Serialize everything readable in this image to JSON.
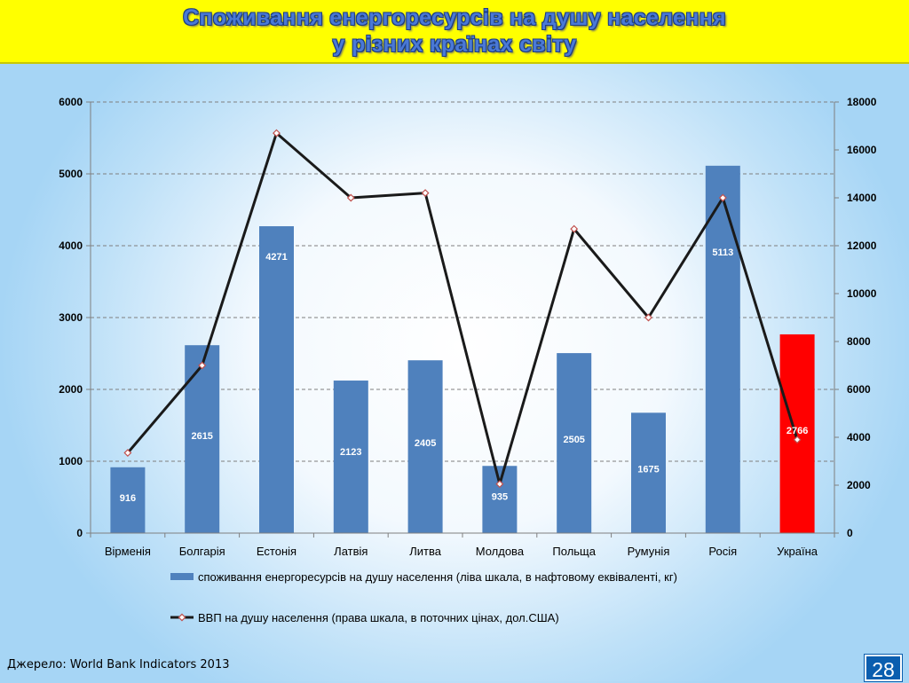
{
  "header": {
    "title_line1": "Споживання енергоресурсів на душу населення",
    "title_line2": "у різних країнах світу"
  },
  "footer": {
    "source": "Джерело: World Bank Indicators 2013",
    "page_number": "28"
  },
  "colors": {
    "bar": "#4f81bd",
    "highlight_bar": "#ff0000",
    "line": "#1a1a1a",
    "marker_stroke": "#c0504d",
    "title_banner": "#ffff00"
  },
  "chart_data": {
    "type": "bar",
    "title": "",
    "categories": [
      "Вірменія",
      "Болгарія",
      "Естонія",
      "Латвія",
      "Литва",
      "Молдова",
      "Польща",
      "Румунія",
      "Росія",
      "Україна"
    ],
    "ylim_left": [
      0,
      6000
    ],
    "yticks_left": [
      0,
      1000,
      2000,
      3000,
      4000,
      5000,
      6000
    ],
    "ylim_right": [
      0,
      18000
    ],
    "yticks_right": [
      0,
      2000,
      4000,
      6000,
      8000,
      10000,
      12000,
      14000,
      16000,
      18000
    ],
    "grid": true,
    "legend_position": "bottom",
    "highlight_category": "Україна",
    "series": [
      {
        "name": "споживання енергоресурсів на душу населення (ліва шкала, в нафтовому еквіваленті, кг)",
        "type": "bar",
        "axis": "left",
        "values": [
          916,
          2615,
          4271,
          2123,
          2405,
          935,
          2505,
          1675,
          5113,
          2766
        ],
        "labels": [
          "916",
          "2615",
          "4271",
          "2123",
          "2405",
          "935",
          "2505",
          "1675",
          "5113",
          "2766"
        ]
      },
      {
        "name": "ВВП на душу населення (права шкала, в поточних цінах, дол.США)",
        "type": "line",
        "axis": "right",
        "values": [
          3350,
          7000,
          16700,
          14000,
          14200,
          2050,
          12700,
          9000,
          14000,
          3900
        ]
      }
    ]
  }
}
